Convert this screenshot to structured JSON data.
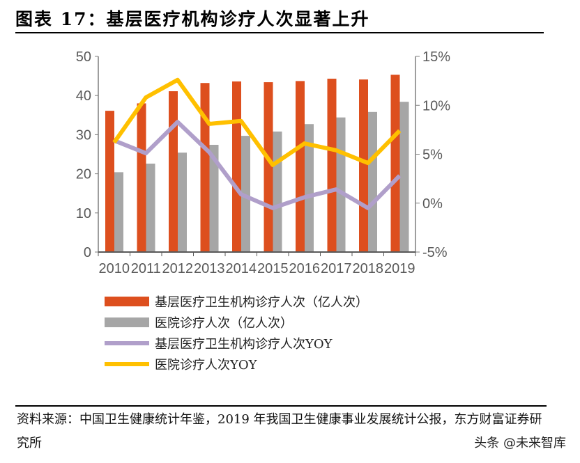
{
  "title": "图表 17：基层医疗机构诊疗人次显著上升",
  "chart_data": {
    "type": "bar+line",
    "categories": [
      "2010",
      "2011",
      "2012",
      "2013",
      "2014",
      "2015",
      "2016",
      "2017",
      "2018",
      "2019"
    ],
    "y_left": {
      "range": [
        0,
        50
      ],
      "ticks": [
        "0",
        "10",
        "20",
        "30",
        "40",
        "50"
      ]
    },
    "y_right": {
      "range": [
        -5,
        15
      ],
      "ticks": [
        "-5%",
        "0%",
        "5%",
        "10%",
        "15%"
      ]
    },
    "grid": false,
    "legend_position": "bottom",
    "series": [
      {
        "name": "基层医疗卫生机构诊疗人次（亿人次）",
        "type": "bar",
        "axis": "left",
        "color": "#DD4F1E",
        "values": [
          36.1,
          38.0,
          41.1,
          43.2,
          43.6,
          43.4,
          43.7,
          44.3,
          44.1,
          45.3
        ]
      },
      {
        "name": "医院诊疗人次（亿人次）",
        "type": "bar",
        "axis": "left",
        "color": "#A6A6A6",
        "values": [
          20.4,
          22.6,
          25.4,
          27.4,
          29.7,
          30.8,
          32.7,
          34.4,
          35.8,
          38.4
        ]
      },
      {
        "name": "基层医疗卫生机构诊疗人次YOY",
        "type": "line",
        "axis": "right",
        "color": "#B09FCA",
        "values": [
          6.4,
          5.1,
          8.3,
          5.2,
          0.9,
          -0.5,
          0.6,
          1.4,
          -0.5,
          2.8
        ]
      },
      {
        "name": "医院诊疗人次YOY",
        "type": "line",
        "axis": "right",
        "color": "#FFC000",
        "values": [
          6.2,
          10.8,
          12.6,
          8.1,
          8.4,
          3.9,
          6.1,
          5.4,
          4.1,
          7.4
        ]
      }
    ]
  },
  "source": "资料来源：中国卫生健康统计年鉴，2019 年我国卫生健康事业发展统计公报，东方财富证券研究所",
  "watermark": "头条 @未来智库"
}
